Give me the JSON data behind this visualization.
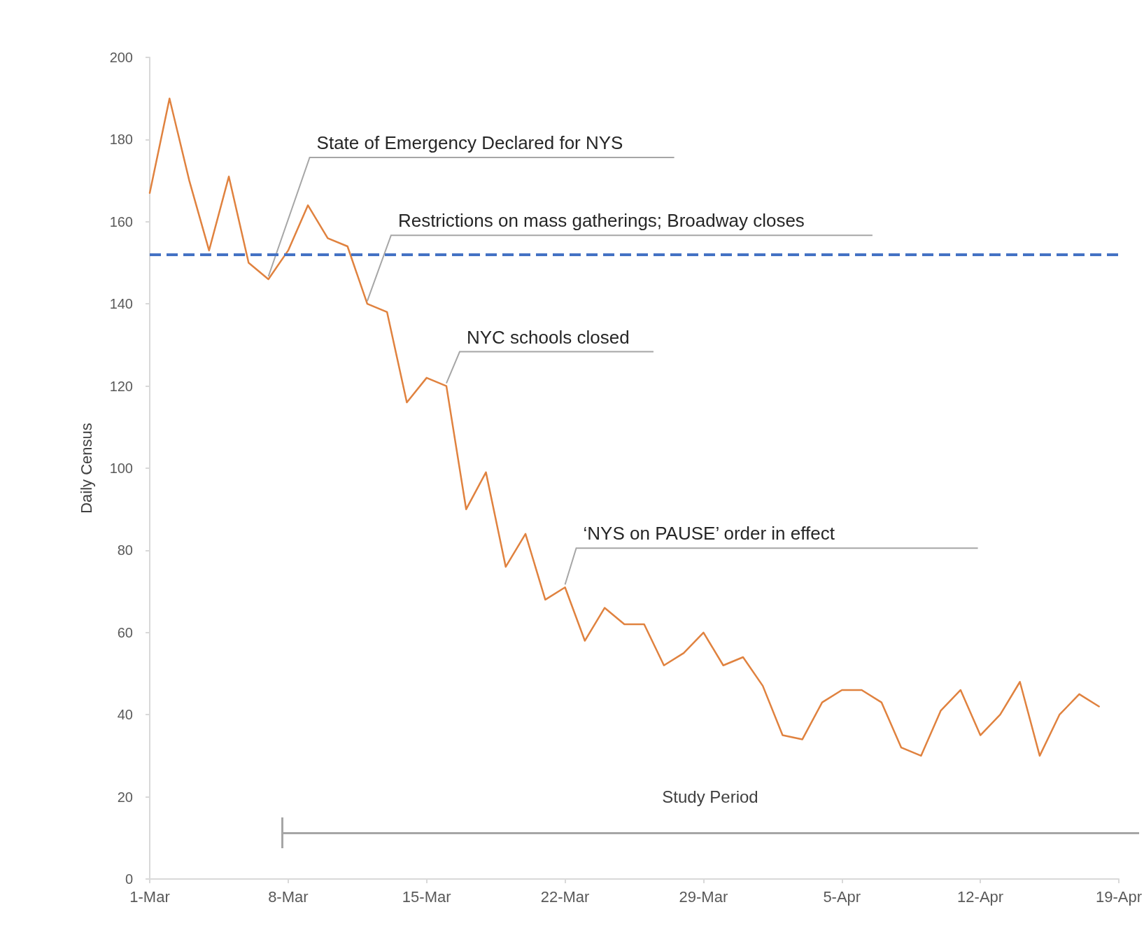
{
  "chart_data": {
    "type": "line",
    "ylabel": "Daily Census",
    "x": [
      "--03-01",
      "--03-02",
      "--03-03",
      "--03-04",
      "--03-05",
      "--03-06",
      "--03-07",
      "--03-08",
      "--03-09",
      "--03-10",
      "--03-11",
      "--03-12",
      "--03-13",
      "--03-14",
      "--03-15",
      "--03-16",
      "--03-17",
      "--03-18",
      "--03-19",
      "--03-20",
      "--03-21",
      "--03-22",
      "--03-23",
      "--03-24",
      "--03-25",
      "--03-26",
      "--03-27",
      "--03-28",
      "--03-29",
      "--03-30",
      "--03-31",
      "--04-01",
      "--04-02",
      "--04-03",
      "--04-04",
      "--04-05",
      "--04-06",
      "--04-07",
      "--04-08",
      "--04-09",
      "--04-10",
      "--04-11",
      "--04-12",
      "--04-13",
      "--04-14",
      "--04-15",
      "--04-16",
      "--04-17",
      "--04-18"
    ],
    "series": [
      {
        "color": "#e0823f",
        "values": [
          167,
          190,
          170,
          153,
          171,
          150,
          146,
          153,
          164,
          156,
          154,
          140,
          138,
          116,
          122,
          120,
          90,
          99,
          76,
          84,
          68,
          71,
          58,
          66,
          62,
          62,
          52,
          55,
          60,
          52,
          54,
          47,
          35,
          34,
          43,
          46,
          46,
          43,
          32,
          30,
          41,
          46,
          35,
          40,
          48,
          30,
          40,
          45,
          42
        ]
      }
    ],
    "xlim": [
      "--03-01",
      "--04-19"
    ],
    "xticks": [
      {
        "value": "--03-01",
        "label": "1-Mar"
      },
      {
        "value": "--03-08",
        "label": "8-Mar"
      },
      {
        "value": "--03-15",
        "label": "15-Mar"
      },
      {
        "value": "--03-22",
        "label": "22-Mar"
      },
      {
        "value": "--03-29",
        "label": "29-Mar"
      },
      {
        "value": "--04-05",
        "label": "5-Apr"
      },
      {
        "value": "--04-12",
        "label": "12-Apr"
      },
      {
        "value": "--04-19",
        "label": "19-Apr"
      }
    ],
    "ylim": [
      0,
      200
    ],
    "yticks": [
      0,
      20,
      40,
      60,
      80,
      100,
      120,
      140,
      160,
      180,
      200
    ],
    "ref_lines": [
      {
        "axis": "y",
        "value": 152,
        "color": "#4472c4",
        "line_style": "dashed"
      }
    ],
    "annotations": [
      "Study Period",
      {
        "text": "State of Emergency Declared for NYS",
        "x": "--03-07",
        "y": 146
      },
      {
        "text": "Restrictions on mass gatherings; Broadway closes",
        "x": "--03-12",
        "y": 140
      },
      {
        "text": "NYC schools closed",
        "x": "--03-16",
        "y": 120
      },
      {
        "text": "‘NYS on PAUSE’ order in effect",
        "x": "--03-22",
        "y": 71
      }
    ],
    "marker": "none",
    "line_style": "solid",
    "grid": false
  }
}
